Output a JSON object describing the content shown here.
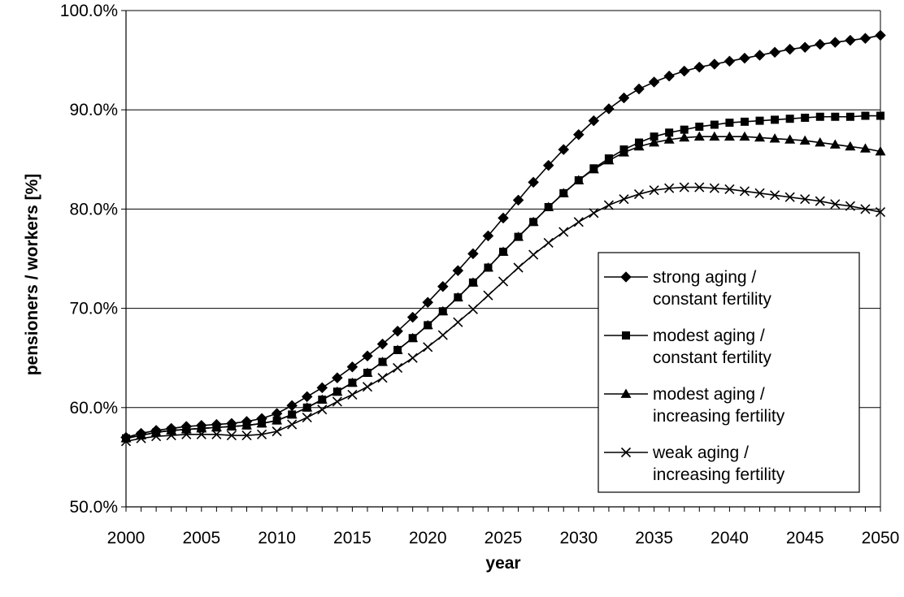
{
  "chart_data": {
    "type": "line",
    "title": "",
    "xlabel": "year",
    "ylabel": "pensioners / workers [%]",
    "xlim": [
      2000,
      2050
    ],
    "ylim": [
      50,
      100
    ],
    "x_ticks": [
      2000,
      2005,
      2010,
      2015,
      2020,
      2025,
      2030,
      2035,
      2040,
      2045,
      2050
    ],
    "x_tick_labels": [
      "2000",
      "2005",
      "2010",
      "2015",
      "2020",
      "2025",
      "2030",
      "2035",
      "2040",
      "2045",
      "2050"
    ],
    "y_ticks": [
      50,
      60,
      70,
      80,
      90,
      100
    ],
    "y_tick_labels": [
      "50.0%",
      "60.0%",
      "70.0%",
      "80.0%",
      "90.0%",
      "100.0%"
    ],
    "grid": "horizontal",
    "legend_position": "right",
    "x": [
      2000,
      2001,
      2002,
      2003,
      2004,
      2005,
      2006,
      2007,
      2008,
      2009,
      2010,
      2011,
      2012,
      2013,
      2014,
      2015,
      2016,
      2017,
      2018,
      2019,
      2020,
      2021,
      2022,
      2023,
      2024,
      2025,
      2026,
      2027,
      2028,
      2029,
      2030,
      2031,
      2032,
      2033,
      2034,
      2035,
      2036,
      2037,
      2038,
      2039,
      2040,
      2041,
      2042,
      2043,
      2044,
      2045,
      2046,
      2047,
      2048,
      2049,
      2050
    ],
    "series": [
      {
        "name": "strong aging / constant fertility",
        "name_lines": [
          "strong aging /",
          "constant fertility"
        ],
        "marker": "diamond",
        "values": [
          57.0,
          57.4,
          57.7,
          57.9,
          58.1,
          58.2,
          58.3,
          58.4,
          58.6,
          58.9,
          59.4,
          60.2,
          61.1,
          62.0,
          63.0,
          64.1,
          65.2,
          66.4,
          67.7,
          69.1,
          70.6,
          72.2,
          73.8,
          75.5,
          77.3,
          79.1,
          80.9,
          82.7,
          84.4,
          86.0,
          87.5,
          88.9,
          90.1,
          91.2,
          92.1,
          92.8,
          93.4,
          93.9,
          94.3,
          94.6,
          94.9,
          95.2,
          95.5,
          95.8,
          96.1,
          96.3,
          96.6,
          96.8,
          97.0,
          97.2,
          97.5
        ]
      },
      {
        "name": "modest aging / constant fertility",
        "name_lines": [
          "modest aging /",
          "constant fertility"
        ],
        "marker": "square",
        "values": [
          56.9,
          57.2,
          57.5,
          57.7,
          57.8,
          57.9,
          58.0,
          58.1,
          58.2,
          58.4,
          58.7,
          59.3,
          60.0,
          60.8,
          61.6,
          62.5,
          63.5,
          64.6,
          65.8,
          67.0,
          68.3,
          69.7,
          71.1,
          72.6,
          74.1,
          75.7,
          77.2,
          78.7,
          80.2,
          81.6,
          82.9,
          84.1,
          85.1,
          86.0,
          86.7,
          87.3,
          87.7,
          88.0,
          88.3,
          88.5,
          88.7,
          88.8,
          88.9,
          89.0,
          89.1,
          89.2,
          89.3,
          89.3,
          89.3,
          89.4,
          89.4
        ]
      },
      {
        "name": "modest aging / increasing fertility",
        "name_lines": [
          "modest aging /",
          "increasing fertility"
        ],
        "marker": "triangle",
        "values": [
          56.9,
          57.2,
          57.5,
          57.7,
          57.8,
          57.9,
          58.0,
          58.1,
          58.2,
          58.4,
          58.7,
          59.3,
          60.0,
          60.8,
          61.6,
          62.5,
          63.5,
          64.6,
          65.8,
          67.0,
          68.3,
          69.7,
          71.1,
          72.6,
          74.1,
          75.7,
          77.2,
          78.7,
          80.2,
          81.6,
          82.9,
          84.0,
          84.9,
          85.7,
          86.3,
          86.7,
          87.0,
          87.2,
          87.3,
          87.3,
          87.3,
          87.3,
          87.2,
          87.1,
          87.0,
          86.9,
          86.7,
          86.5,
          86.3,
          86.1,
          85.8
        ]
      },
      {
        "name": "weak aging / increasing fertility",
        "name_lines": [
          "weak aging /",
          "increasing fertility"
        ],
        "marker": "x",
        "values": [
          56.6,
          56.9,
          57.1,
          57.2,
          57.3,
          57.3,
          57.3,
          57.2,
          57.2,
          57.3,
          57.6,
          58.3,
          59.0,
          59.8,
          60.6,
          61.3,
          62.1,
          63.0,
          64.0,
          65.0,
          66.1,
          67.3,
          68.6,
          69.9,
          71.3,
          72.7,
          74.1,
          75.4,
          76.6,
          77.7,
          78.7,
          79.6,
          80.4,
          81.0,
          81.5,
          81.9,
          82.1,
          82.2,
          82.2,
          82.1,
          82.0,
          81.8,
          81.6,
          81.4,
          81.2,
          81.0,
          80.8,
          80.5,
          80.3,
          80.0,
          79.7
        ]
      }
    ]
  }
}
